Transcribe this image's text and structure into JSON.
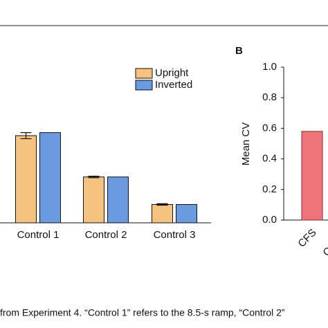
{
  "chart_data": [
    {
      "type": "bar",
      "categories": [
        "Control 1",
        "Control 2",
        "Control 3"
      ],
      "series": [
        {
          "name": "Upright",
          "color": "#f5c27f",
          "values": [
            0.57,
            0.3,
            0.12
          ],
          "errors": [
            0.02,
            0.005,
            0.005
          ]
        },
        {
          "name": "Inverted",
          "color": "#6a9be0",
          "values": [
            0.59,
            0.3,
            0.12
          ]
        }
      ],
      "ylim": [
        0,
        1
      ]
    },
    {
      "type": "bar",
      "panel": "B",
      "ylabel": "Mean CV",
      "categories": [
        "CFS",
        "Control"
      ],
      "values": [
        0.58,
        null
      ],
      "color": "#ef7479",
      "ylim": [
        0,
        1
      ],
      "yticks": [
        {
          "value": 0,
          "label": "0.0"
        },
        {
          "value": 0.2,
          "label": "0.2"
        },
        {
          "value": 0.4,
          "label": "0.4"
        },
        {
          "value": 0.6,
          "label": "0.6"
        },
        {
          "value": 0.8,
          "label": "0.8"
        },
        {
          "value": 1,
          "label": "1.0"
        }
      ]
    }
  ],
  "caption": "from Experiment 4. “Control 1” refers to the 8.5-s ramp, “Control 2”"
}
